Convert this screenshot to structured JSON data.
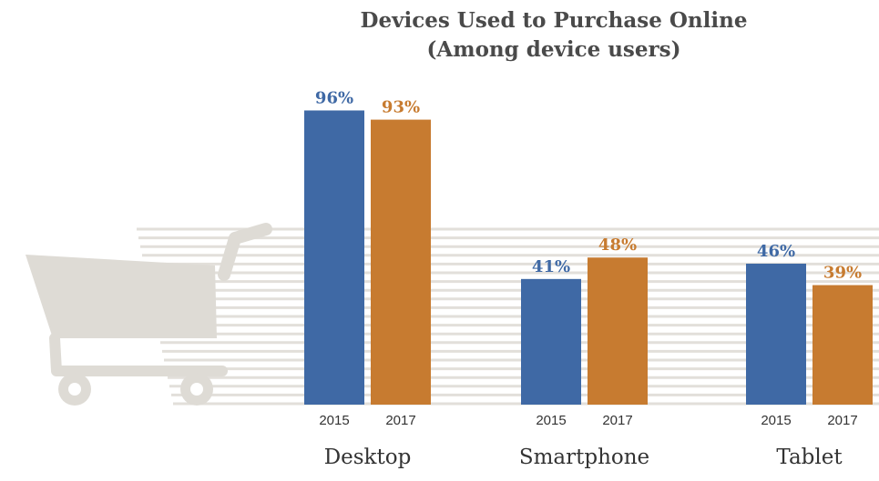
{
  "chart_data": {
    "type": "bar",
    "title_lines": [
      "Devices Used to Purchase Online",
      "(Among device users)"
    ],
    "categories": [
      "Desktop",
      "Smartphone",
      "Tablet"
    ],
    "series": [
      {
        "name": "2015",
        "values": [
          96,
          41,
          46
        ],
        "labels": [
          "96%",
          "41%",
          "46%"
        ]
      },
      {
        "name": "2017",
        "values": [
          93,
          48,
          39
        ],
        "labels": [
          "93%",
          "48%",
          "39%"
        ]
      }
    ],
    "ylim": [
      0,
      100
    ],
    "grid": false,
    "legend": "none",
    "decoration": "shopping-cart-icon"
  },
  "colors": {
    "series_2015": "#3f69a5",
    "series_2017": "#c77b30",
    "cart": "#dedbd5",
    "stripes": "#e2dfda"
  }
}
